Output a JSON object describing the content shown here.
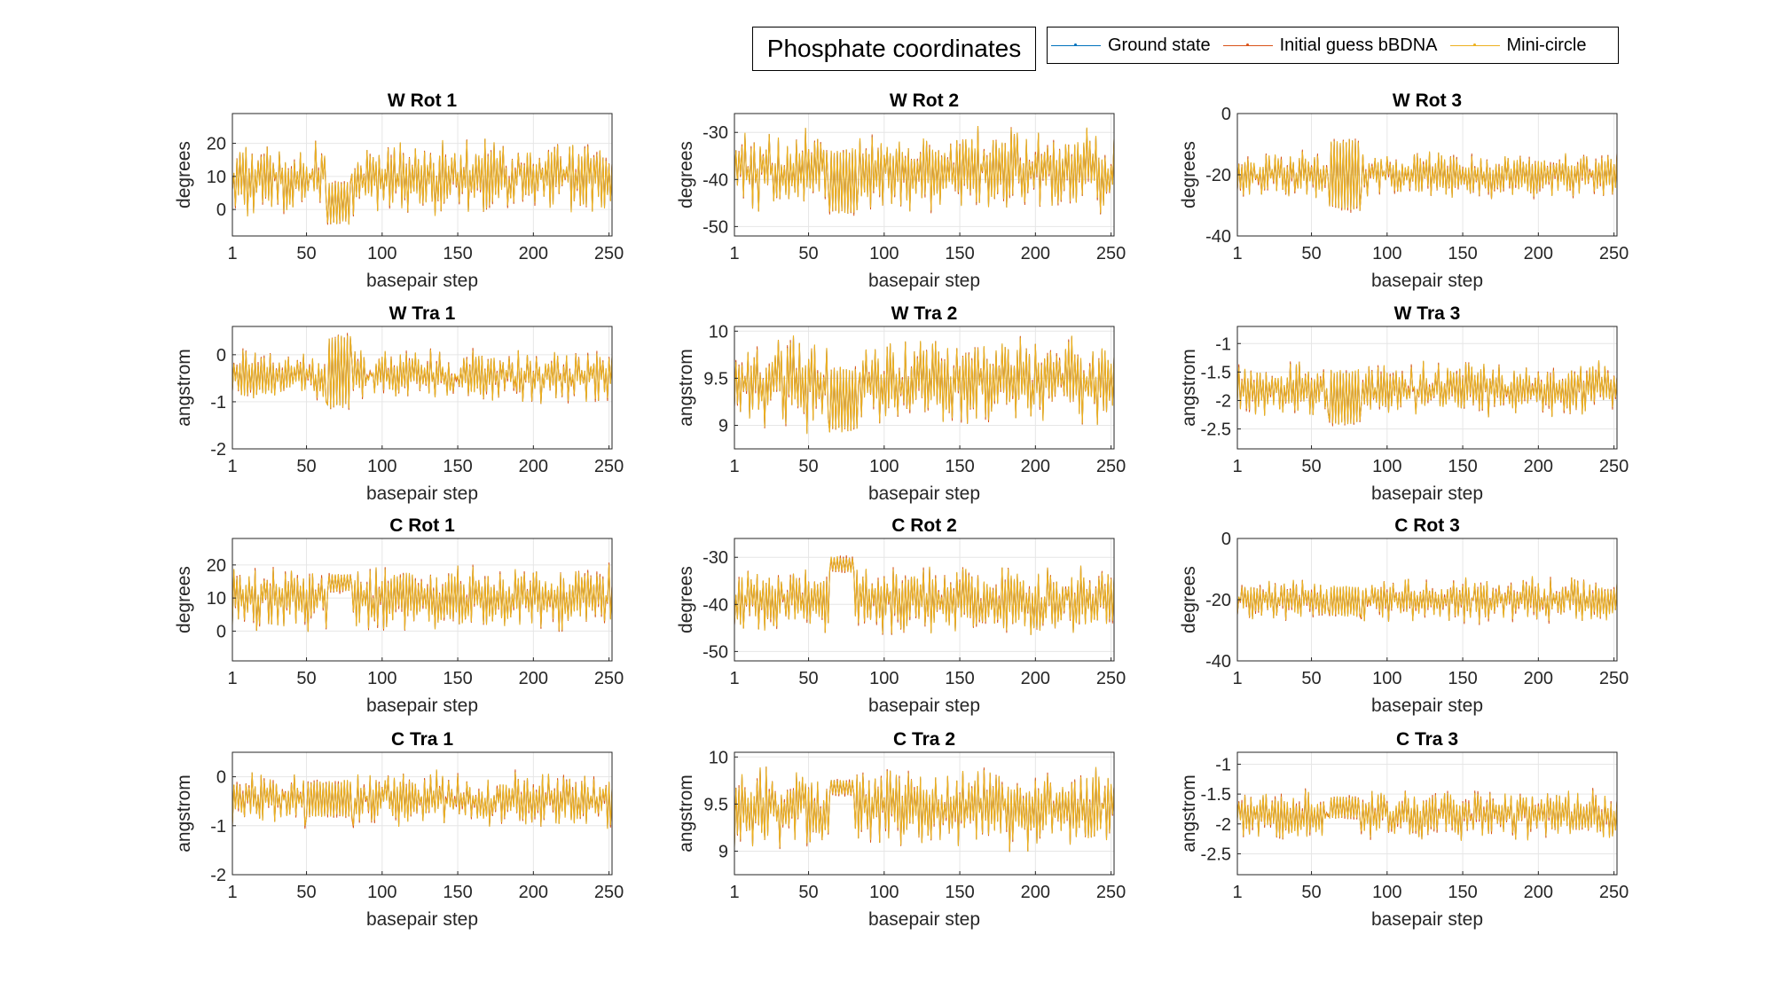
{
  "figure": {
    "title": "Phosphate coordinates",
    "legend": [
      {
        "label": "Ground state",
        "color": "#0072BD"
      },
      {
        "label": "Initial guess bBDNA",
        "color": "#D95319"
      },
      {
        "label": "Mini-circle",
        "color": "#EDB120"
      }
    ]
  },
  "chart_data": [
    {
      "type": "line",
      "title": "W Rot 1",
      "xlabel": "basepair step",
      "ylabel": "degrees",
      "xlim": [
        1,
        252
      ],
      "ylim": [
        -8,
        29
      ],
      "xticks": [
        1,
        50,
        100,
        150,
        200,
        250
      ],
      "yticks": [
        0,
        10,
        20
      ],
      "grid": true,
      "center": 10,
      "amp": 9,
      "plateau": [
        64,
        79,
        -4,
        8
      ]
    },
    {
      "type": "line",
      "title": "W Rot 2",
      "xlabel": "basepair step",
      "ylabel": "degrees",
      "xlim": [
        1,
        252
      ],
      "ylim": [
        -52,
        -26
      ],
      "xticks": [
        1,
        50,
        100,
        150,
        200,
        250
      ],
      "yticks": [
        -30,
        -40,
        -50
      ],
      "grid": true,
      "center": -38,
      "amp": 7,
      "plateau": [
        64,
        82,
        -47,
        -34
      ]
    },
    {
      "type": "line",
      "title": "W Rot 3",
      "xlabel": "basepair step",
      "ylabel": "degrees",
      "xlim": [
        1,
        252
      ],
      "ylim": [
        -40,
        0
      ],
      "xticks": [
        1,
        50,
        100,
        150,
        200,
        250
      ],
      "yticks": [
        0,
        -20,
        -40
      ],
      "grid": true,
      "center": -20,
      "amp": 6,
      "plateau": [
        62,
        82,
        -31,
        -9
      ]
    },
    {
      "type": "line",
      "title": "W Tra 1",
      "xlabel": "basepair step",
      "ylabel": "angstrom",
      "xlim": [
        1,
        252
      ],
      "ylim": [
        -2,
        0.6
      ],
      "xticks": [
        1,
        50,
        100,
        150,
        200,
        250
      ],
      "yticks": [
        0,
        -1,
        -2
      ],
      "grid": true,
      "center": -0.45,
      "amp": 0.45,
      "plateau": [
        64,
        79,
        -1.1,
        0.4
      ]
    },
    {
      "type": "line",
      "title": "W Tra 2",
      "xlabel": "basepair step",
      "ylabel": "angstrom",
      "xlim": [
        1,
        252
      ],
      "ylim": [
        8.75,
        10.05
      ],
      "xticks": [
        1,
        50,
        100,
        150,
        200,
        250
      ],
      "yticks": [
        10,
        9.5,
        9
      ],
      "grid": true,
      "center": 9.45,
      "amp": 0.4,
      "plateau": [
        64,
        82,
        8.95,
        9.6
      ]
    },
    {
      "type": "line",
      "title": "W Tra 3",
      "xlabel": "basepair step",
      "ylabel": "angstrom",
      "xlim": [
        1,
        252
      ],
      "ylim": [
        -2.85,
        -0.7
      ],
      "xticks": [
        1,
        50,
        100,
        150,
        200,
        250
      ],
      "yticks": [
        -1,
        -1.5,
        -2,
        -2.5
      ],
      "grid": true,
      "center": -1.8,
      "amp": 0.38,
      "plateau": [
        62,
        82,
        -2.4,
        -1.5
      ]
    },
    {
      "type": "line",
      "title": "C Rot 1",
      "xlabel": "basepair step",
      "ylabel": "degrees",
      "xlim": [
        1,
        252
      ],
      "ylim": [
        -9,
        28
      ],
      "xticks": [
        1,
        50,
        100,
        150,
        200,
        250
      ],
      "yticks": [
        0,
        10,
        20
      ],
      "grid": true,
      "center": 10,
      "amp": 8,
      "plateau": [
        64,
        79,
        12,
        17
      ]
    },
    {
      "type": "line",
      "title": "C Rot 2",
      "xlabel": "basepair step",
      "ylabel": "degrees",
      "xlim": [
        1,
        252
      ],
      "ylim": [
        -52,
        -26
      ],
      "xticks": [
        1,
        50,
        100,
        150,
        200,
        250
      ],
      "yticks": [
        -30,
        -40,
        -50
      ],
      "grid": true,
      "center": -39,
      "amp": 6,
      "plateau": [
        64,
        80,
        -33,
        -30
      ]
    },
    {
      "type": "line",
      "title": "C Rot 3",
      "xlabel": "basepair step",
      "ylabel": "degrees",
      "xlim": [
        1,
        252
      ],
      "ylim": [
        -40,
        0
      ],
      "xticks": [
        1,
        50,
        100,
        150,
        200,
        250
      ],
      "yticks": [
        0,
        -20,
        -40
      ],
      "grid": true,
      "center": -20,
      "amp": 6,
      "plateau": [
        62,
        82,
        -25,
        -16
      ]
    },
    {
      "type": "line",
      "title": "C Tra 1",
      "xlabel": "basepair step",
      "ylabel": "angstrom",
      "xlim": [
        1,
        252
      ],
      "ylim": [
        -2,
        0.5
      ],
      "xticks": [
        1,
        50,
        100,
        150,
        200,
        250
      ],
      "yticks": [
        0,
        -1,
        -2
      ],
      "grid": true,
      "center": -0.45,
      "amp": 0.45,
      "plateau": [
        50,
        80,
        -0.8,
        -0.1
      ]
    },
    {
      "type": "line",
      "title": "C Tra 2",
      "xlabel": "basepair step",
      "ylabel": "angstrom",
      "xlim": [
        1,
        252
      ],
      "ylim": [
        8.75,
        10.05
      ],
      "xticks": [
        1,
        50,
        100,
        150,
        200,
        250
      ],
      "yticks": [
        10,
        9.5,
        9
      ],
      "grid": true,
      "center": 9.45,
      "amp": 0.35,
      "plateau": [
        64,
        80,
        9.6,
        9.75
      ]
    },
    {
      "type": "line",
      "title": "C Tra 3",
      "xlabel": "basepair step",
      "ylabel": "angstrom",
      "xlim": [
        1,
        252
      ],
      "ylim": [
        -2.85,
        -0.8
      ],
      "xticks": [
        1,
        50,
        100,
        150,
        200,
        250
      ],
      "yticks": [
        -1,
        -1.5,
        -2,
        -2.5
      ],
      "grid": true,
      "center": -1.85,
      "amp": 0.35,
      "plateau": [
        62,
        82,
        -1.9,
        -1.55
      ]
    }
  ]
}
